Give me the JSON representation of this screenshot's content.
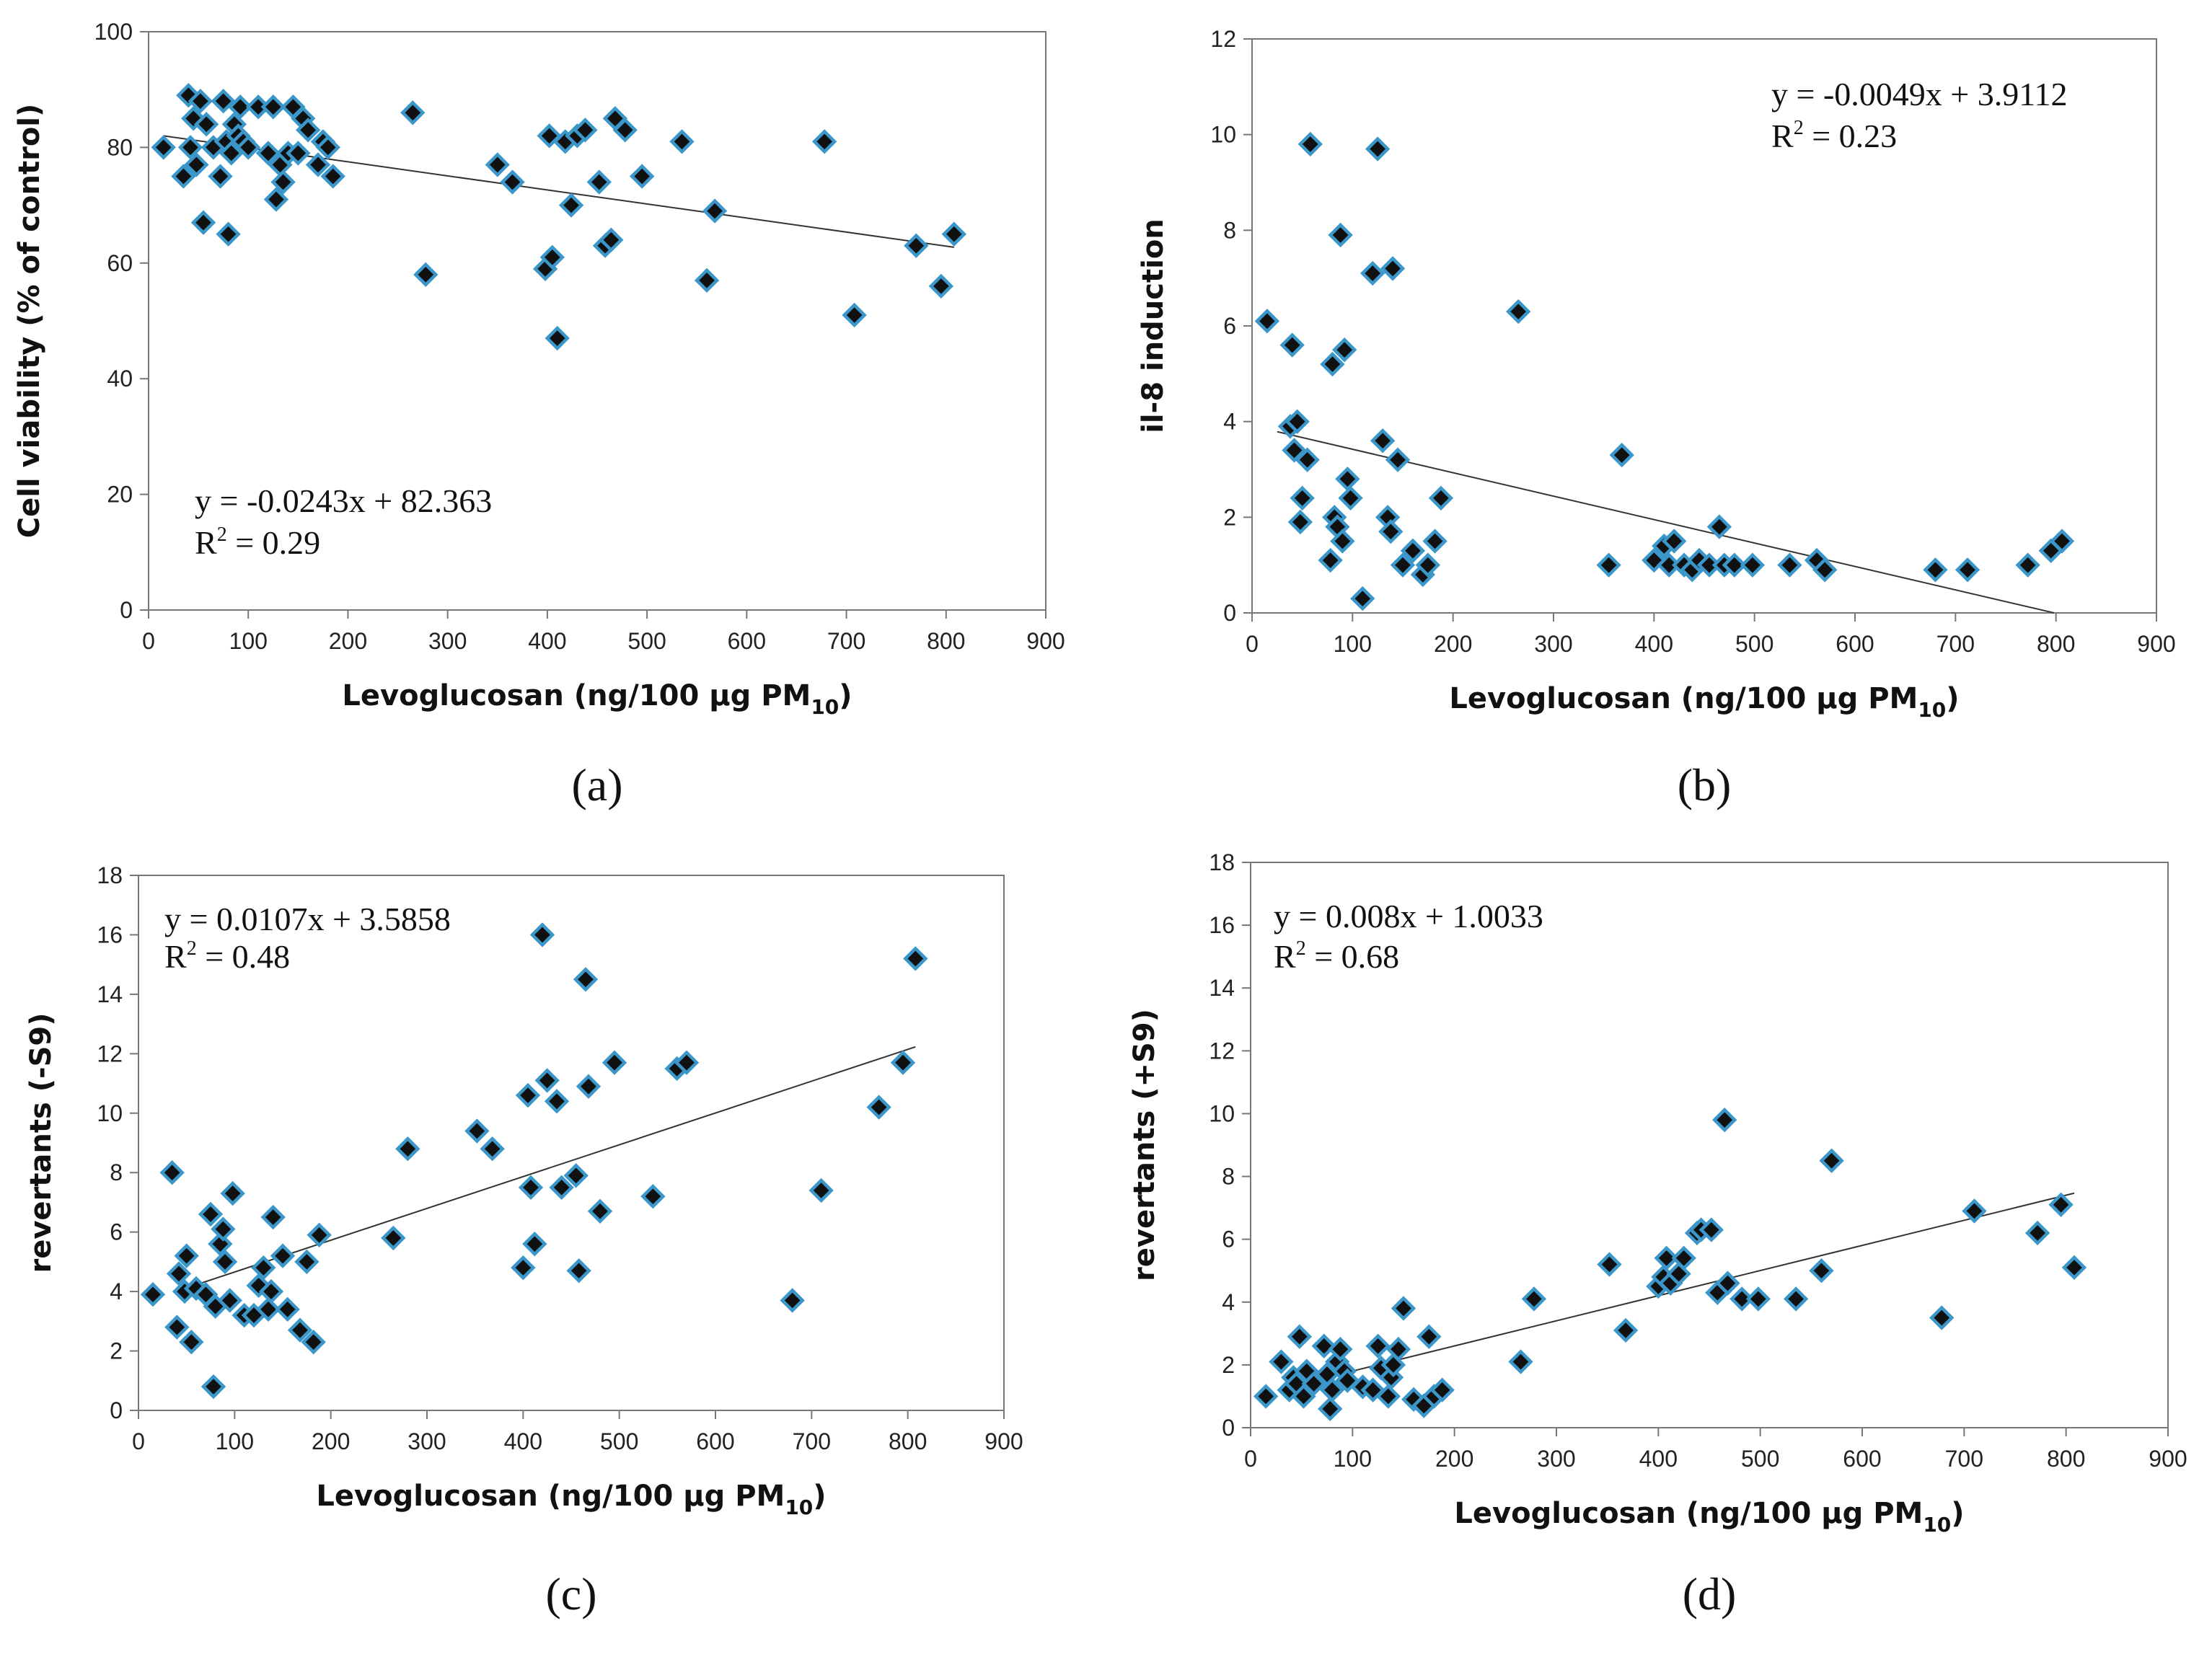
{
  "chart_data": [
    {
      "id": "a",
      "type": "scatter",
      "panel_label": "(a)",
      "xlabel": "Levoglucosan (ng/100 µg PM",
      "xlabel_sub": "10",
      "xlabel_end": ")",
      "ylabel": "Cell viability (% of control)",
      "xlim": [
        0,
        900
      ],
      "ylim": [
        0,
        100
      ],
      "xticks": [
        0,
        100,
        200,
        300,
        400,
        500,
        600,
        700,
        800,
        900
      ],
      "yticks": [
        0,
        20,
        40,
        60,
        80,
        100
      ],
      "equation": "y = -0.0243x + 82.363",
      "r2_label": "R",
      "r2_sup": "2",
      "r2_value": " = 0.29",
      "trendline": {
        "slope": -0.0243,
        "intercept": 82.363,
        "x_range": [
          15,
          808
        ]
      },
      "points": [
        [
          15,
          80
        ],
        [
          35,
          75
        ],
        [
          40,
          89
        ],
        [
          42,
          80
        ],
        [
          45,
          85
        ],
        [
          48,
          77
        ],
        [
          52,
          88
        ],
        [
          55,
          67
        ],
        [
          58,
          84
        ],
        [
          65,
          80
        ],
        [
          72,
          75
        ],
        [
          75,
          88
        ],
        [
          78,
          81
        ],
        [
          80,
          65
        ],
        [
          83,
          79
        ],
        [
          86,
          84
        ],
        [
          90,
          82
        ],
        [
          92,
          87
        ],
        [
          95,
          81
        ],
        [
          100,
          80
        ],
        [
          110,
          87
        ],
        [
          120,
          79
        ],
        [
          125,
          87
        ],
        [
          128,
          71
        ],
        [
          132,
          77
        ],
        [
          135,
          74
        ],
        [
          140,
          79
        ],
        [
          145,
          87
        ],
        [
          150,
          79
        ],
        [
          155,
          85
        ],
        [
          160,
          83
        ],
        [
          170,
          77
        ],
        [
          175,
          81
        ],
        [
          180,
          80
        ],
        [
          185,
          75
        ],
        [
          265,
          86
        ],
        [
          278,
          58
        ],
        [
          350,
          77
        ],
        [
          365,
          74
        ],
        [
          398,
          59
        ],
        [
          402,
          82
        ],
        [
          405,
          61
        ],
        [
          410,
          47
        ],
        [
          418,
          81
        ],
        [
          424,
          70
        ],
        [
          430,
          82
        ],
        [
          438,
          83
        ],
        [
          452,
          74
        ],
        [
          458,
          63
        ],
        [
          464,
          64
        ],
        [
          468,
          85
        ],
        [
          478,
          83
        ],
        [
          495,
          75
        ],
        [
          535,
          81
        ],
        [
          560,
          57
        ],
        [
          568,
          69
        ],
        [
          678,
          81
        ],
        [
          708,
          51
        ],
        [
          770,
          63
        ],
        [
          795,
          56
        ],
        [
          808,
          65
        ]
      ]
    },
    {
      "id": "b",
      "type": "scatter",
      "panel_label": "(b)",
      "xlabel": "Levoglucosan (ng/100 µg PM",
      "xlabel_sub": "10",
      "xlabel_end": ")",
      "ylabel": "il-8 induction",
      "xlim": [
        0,
        900
      ],
      "ylim": [
        0,
        12
      ],
      "xticks": [
        0,
        100,
        200,
        300,
        400,
        500,
        600,
        700,
        800,
        900
      ],
      "yticks": [
        0,
        2,
        4,
        6,
        8,
        10,
        12
      ],
      "equation": "y = -0.0049x + 3.9112",
      "r2_label": "R",
      "r2_sup": "2",
      "r2_value": " = 0.23",
      "trendline": {
        "slope": -0.0049,
        "intercept": 3.9112,
        "x_range": [
          25,
          798
        ]
      },
      "points": [
        [
          15,
          6.1
        ],
        [
          38,
          3.9
        ],
        [
          40,
          5.6
        ],
        [
          42,
          3.4
        ],
        [
          45,
          4
        ],
        [
          48,
          1.9
        ],
        [
          50,
          2.4
        ],
        [
          55,
          3.2
        ],
        [
          58,
          9.8
        ],
        [
          78,
          1.1
        ],
        [
          80,
          5.2
        ],
        [
          82,
          2
        ],
        [
          85,
          1.8
        ],
        [
          88,
          7.9
        ],
        [
          90,
          1.5
        ],
        [
          92,
          5.5
        ],
        [
          95,
          2.8
        ],
        [
          98,
          2.4
        ],
        [
          110,
          0.3
        ],
        [
          120,
          7.1
        ],
        [
          125,
          9.7
        ],
        [
          130,
          3.6
        ],
        [
          135,
          2
        ],
        [
          138,
          1.7
        ],
        [
          140,
          7.2
        ],
        [
          145,
          3.2
        ],
        [
          150,
          1
        ],
        [
          160,
          1.3
        ],
        [
          170,
          0.8
        ],
        [
          175,
          1
        ],
        [
          182,
          1.5
        ],
        [
          188,
          2.4
        ],
        [
          265,
          6.3
        ],
        [
          355,
          1
        ],
        [
          368,
          3.3
        ],
        [
          400,
          1.1
        ],
        [
          410,
          1.4
        ],
        [
          415,
          1
        ],
        [
          420,
          1.5
        ],
        [
          430,
          1
        ],
        [
          438,
          0.9
        ],
        [
          445,
          1.1
        ],
        [
          455,
          1
        ],
        [
          465,
          1.8
        ],
        [
          470,
          1
        ],
        [
          480,
          1
        ],
        [
          498,
          1
        ],
        [
          535,
          1
        ],
        [
          562,
          1.1
        ],
        [
          570,
          0.9
        ],
        [
          680,
          0.9
        ],
        [
          712,
          0.9
        ],
        [
          772,
          1
        ],
        [
          795,
          1.3
        ],
        [
          806,
          1.5
        ]
      ]
    },
    {
      "id": "c",
      "type": "scatter",
      "panel_label": "(c)",
      "xlabel": "Levoglucosan (ng/100 µg PM",
      "xlabel_sub": "10",
      "xlabel_end": ")",
      "ylabel": "revertants (-S9)",
      "xlim": [
        0,
        900
      ],
      "ylim": [
        0,
        18
      ],
      "xticks": [
        0,
        100,
        200,
        300,
        400,
        500,
        600,
        700,
        800,
        900
      ],
      "yticks": [
        0,
        2,
        4,
        6,
        8,
        10,
        12,
        14,
        16,
        18
      ],
      "equation": "y = 0.0107x + 3.5858",
      "r2_label": "R",
      "r2_sup": "2",
      "r2_value": " = 0.48",
      "trendline": {
        "slope": 0.0107,
        "intercept": 3.5858,
        "x_range": [
          40,
          808
        ]
      },
      "points": [
        [
          15,
          3.9
        ],
        [
          35,
          8
        ],
        [
          40,
          2.8
        ],
        [
          42,
          4.6
        ],
        [
          48,
          4
        ],
        [
          50,
          5.2
        ],
        [
          55,
          2.3
        ],
        [
          60,
          4.1
        ],
        [
          70,
          3.9
        ],
        [
          75,
          6.6
        ],
        [
          78,
          0.8
        ],
        [
          80,
          3.5
        ],
        [
          85,
          5.6
        ],
        [
          88,
          6.1
        ],
        [
          90,
          5
        ],
        [
          95,
          3.7
        ],
        [
          98,
          7.3
        ],
        [
          110,
          3.2
        ],
        [
          120,
          3.2
        ],
        [
          125,
          4.2
        ],
        [
          130,
          4.8
        ],
        [
          135,
          3.4
        ],
        [
          138,
          4
        ],
        [
          140,
          6.5
        ],
        [
          150,
          5.2
        ],
        [
          155,
          3.4
        ],
        [
          168,
          2.7
        ],
        [
          175,
          5
        ],
        [
          182,
          2.3
        ],
        [
          188,
          5.9
        ],
        [
          265,
          5.8
        ],
        [
          280,
          8.8
        ],
        [
          352,
          9.4
        ],
        [
          368,
          8.8
        ],
        [
          400,
          4.8
        ],
        [
          405,
          10.6
        ],
        [
          408,
          7.5
        ],
        [
          412,
          5.6
        ],
        [
          420,
          16
        ],
        [
          425,
          11.1
        ],
        [
          435,
          10.4
        ],
        [
          440,
          7.5
        ],
        [
          455,
          7.9
        ],
        [
          458,
          4.7
        ],
        [
          465,
          14.5
        ],
        [
          468,
          10.9
        ],
        [
          480,
          6.7
        ],
        [
          495,
          11.7
        ],
        [
          535,
          7.2
        ],
        [
          560,
          11.5
        ],
        [
          570,
          11.7
        ],
        [
          680,
          3.7
        ],
        [
          710,
          7.4
        ],
        [
          770,
          10.2
        ],
        [
          795,
          11.7
        ],
        [
          808,
          15.2
        ]
      ]
    },
    {
      "id": "d",
      "type": "scatter",
      "panel_label": "(d)",
      "xlabel": "Levoglucosan (ng/100 µg PM",
      "xlabel_sub": "10",
      "xlabel_end": ")",
      "ylabel": "revertants (+S9)",
      "xlim": [
        0,
        900
      ],
      "ylim": [
        0,
        18
      ],
      "xticks": [
        0,
        100,
        200,
        300,
        400,
        500,
        600,
        700,
        800,
        900
      ],
      "yticks": [
        0,
        2,
        4,
        6,
        8,
        10,
        12,
        14,
        16,
        18
      ],
      "equation": "y = 0.008x + 1.0033",
      "r2_label": "R",
      "r2_sup": "2",
      "r2_value": " = 0.68",
      "trendline": {
        "slope": 0.008,
        "intercept": 1.0033,
        "x_range": [
          40,
          808
        ]
      },
      "points": [
        [
          15,
          1
        ],
        [
          30,
          2.1
        ],
        [
          38,
          1.2
        ],
        [
          42,
          1.6
        ],
        [
          45,
          1.4
        ],
        [
          48,
          2.9
        ],
        [
          52,
          1
        ],
        [
          55,
          1.8
        ],
        [
          62,
          1.4
        ],
        [
          72,
          2.6
        ],
        [
          75,
          1.7
        ],
        [
          78,
          0.6
        ],
        [
          80,
          1.2
        ],
        [
          85,
          2.1
        ],
        [
          88,
          2.5
        ],
        [
          92,
          1.8
        ],
        [
          95,
          1.5
        ],
        [
          110,
          1.3
        ],
        [
          120,
          1.2
        ],
        [
          125,
          2.6
        ],
        [
          128,
          1.9
        ],
        [
          135,
          1
        ],
        [
          138,
          1.6
        ],
        [
          140,
          2
        ],
        [
          145,
          2.5
        ],
        [
          150,
          3.8
        ],
        [
          160,
          0.9
        ],
        [
          170,
          0.7
        ],
        [
          175,
          2.9
        ],
        [
          180,
          1
        ],
        [
          188,
          1.2
        ],
        [
          265,
          2.1
        ],
        [
          278,
          4.1
        ],
        [
          352,
          5.2
        ],
        [
          368,
          3.1
        ],
        [
          400,
          4.5
        ],
        [
          405,
          4.8
        ],
        [
          408,
          5.4
        ],
        [
          412,
          4.6
        ],
        [
          420,
          4.9
        ],
        [
          425,
          5.4
        ],
        [
          438,
          6.2
        ],
        [
          442,
          6.3
        ],
        [
          452,
          6.3
        ],
        [
          458,
          4.3
        ],
        [
          465,
          9.8
        ],
        [
          468,
          4.6
        ],
        [
          482,
          4.1
        ],
        [
          498,
          4.1
        ],
        [
          535,
          4.1
        ],
        [
          560,
          5
        ],
        [
          570,
          8.5
        ],
        [
          678,
          3.5
        ],
        [
          710,
          6.9
        ],
        [
          772,
          6.2
        ],
        [
          795,
          7.1
        ],
        [
          808,
          5.1
        ]
      ]
    }
  ]
}
